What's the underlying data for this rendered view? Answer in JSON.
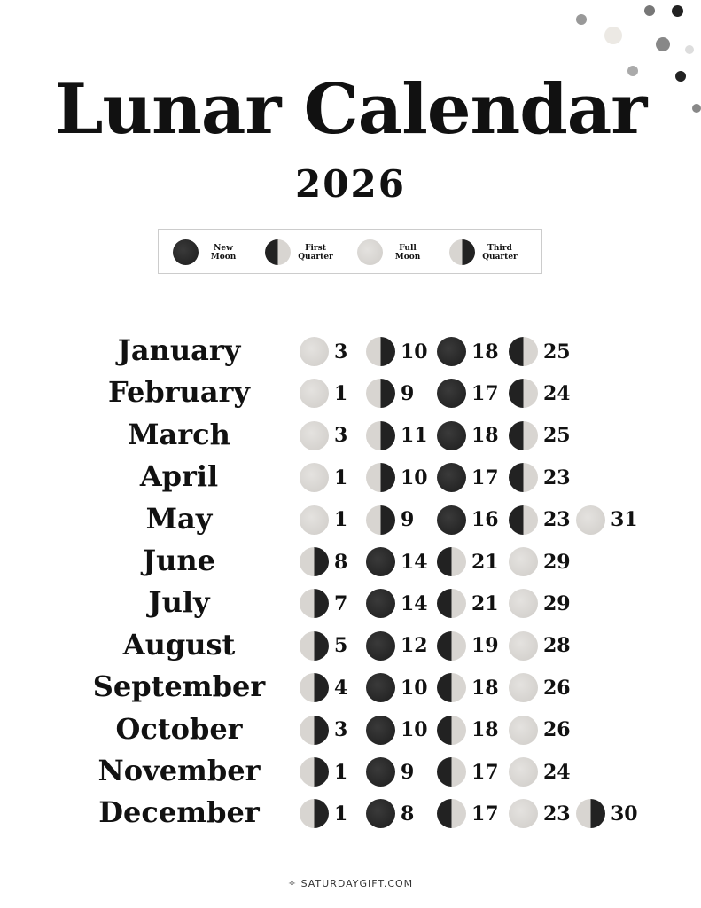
{
  "title": "Lunar Calendar",
  "year": "2026",
  "legend": [
    {
      "phase": "new",
      "label1": "New",
      "label2": "Moon"
    },
    {
      "phase": "first",
      "label1": "First",
      "label2": "Quarter"
    },
    {
      "phase": "full",
      "label1": "Full",
      "label2": "Moon"
    },
    {
      "phase": "third",
      "label1": "Third",
      "label2": "Quarter"
    }
  ],
  "months": [
    {
      "name": "January",
      "events": [
        [
          "full",
          "3"
        ],
        [
          "third",
          "10"
        ],
        [
          "new",
          "18"
        ],
        [
          "first",
          "25"
        ]
      ]
    },
    {
      "name": "February",
      "events": [
        [
          "full",
          "1"
        ],
        [
          "third",
          "9"
        ],
        [
          "new",
          "17"
        ],
        [
          "first",
          "24"
        ]
      ]
    },
    {
      "name": "March",
      "events": [
        [
          "full",
          "3"
        ],
        [
          "third",
          "11"
        ],
        [
          "new",
          "18"
        ],
        [
          "first",
          "25"
        ]
      ]
    },
    {
      "name": "April",
      "events": [
        [
          "full",
          "1"
        ],
        [
          "third",
          "10"
        ],
        [
          "new",
          "17"
        ],
        [
          "first",
          "23"
        ]
      ]
    },
    {
      "name": "May",
      "events": [
        [
          "full",
          "1"
        ],
        [
          "third",
          "9"
        ],
        [
          "new",
          "16"
        ],
        [
          "first",
          "23"
        ],
        [
          "full",
          "31"
        ]
      ]
    },
    {
      "name": "June",
      "events": [
        [
          "third",
          "8"
        ],
        [
          "new",
          "14"
        ],
        [
          "first",
          "21"
        ],
        [
          "full",
          "29"
        ]
      ]
    },
    {
      "name": "July",
      "events": [
        [
          "third",
          "7"
        ],
        [
          "new",
          "14"
        ],
        [
          "first",
          "21"
        ],
        [
          "full",
          "29"
        ]
      ]
    },
    {
      "name": "August",
      "events": [
        [
          "third",
          "5"
        ],
        [
          "new",
          "12"
        ],
        [
          "first",
          "19"
        ],
        [
          "full",
          "28"
        ]
      ]
    },
    {
      "name": "September",
      "events": [
        [
          "third",
          "4"
        ],
        [
          "new",
          "10"
        ],
        [
          "first",
          "18"
        ],
        [
          "full",
          "26"
        ]
      ]
    },
    {
      "name": "October",
      "events": [
        [
          "third",
          "3"
        ],
        [
          "new",
          "10"
        ],
        [
          "first",
          "18"
        ],
        [
          "full",
          "26"
        ]
      ]
    },
    {
      "name": "November",
      "events": [
        [
          "third",
          "1"
        ],
        [
          "new",
          "9"
        ],
        [
          "first",
          "17"
        ],
        [
          "full",
          "24"
        ]
      ]
    },
    {
      "name": "December",
      "events": [
        [
          "third",
          "1"
        ],
        [
          "new",
          "8"
        ],
        [
          "first",
          "17"
        ],
        [
          "full",
          "23"
        ],
        [
          "third",
          "30"
        ]
      ]
    }
  ],
  "footer": "SATURDAYGIFT.COM"
}
